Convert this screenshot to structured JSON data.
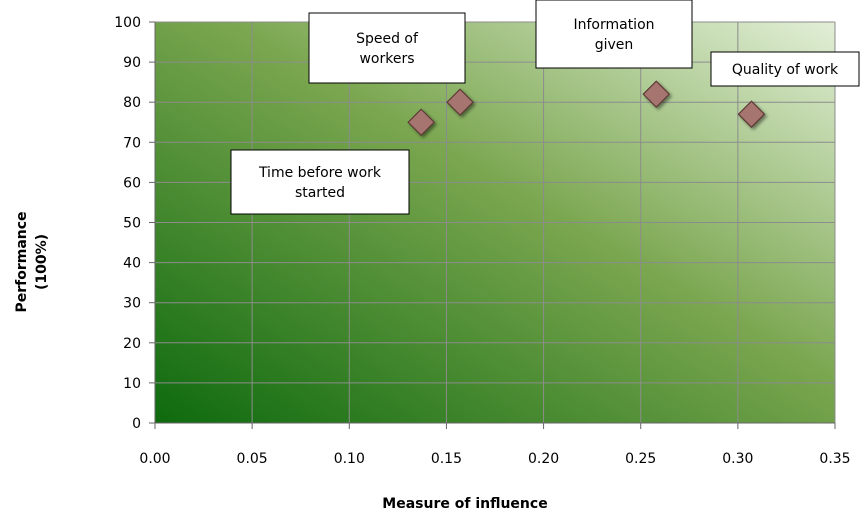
{
  "chart_data": {
    "type": "scatter",
    "title": "",
    "xlabel": "Measure of influence",
    "ylabel": [
      "Performance",
      "(100%)"
    ],
    "xlim": [
      0,
      0.35
    ],
    "ylim": [
      0,
      100
    ],
    "xticks": [
      "0.00",
      "0.05",
      "0.10",
      "0.15",
      "0.20",
      "0.25",
      "0.30",
      "0.35"
    ],
    "yticks": [
      "0",
      "10",
      "20",
      "30",
      "40",
      "50",
      "60",
      "70",
      "80",
      "90",
      "100"
    ],
    "grid": true,
    "legend": "none",
    "colors": {
      "plot_gradient_dark": "#0e6a0e",
      "plot_gradient_mid": "#7aa64f",
      "plot_gradient_light": "#e2efd7",
      "marker_fill": "#a7746f",
      "marker_stroke": "#5b3a36",
      "gridline": "#8c8c8c"
    },
    "points": [
      {
        "x": 0.137,
        "y": 75,
        "label": [
          "Time before work",
          "started"
        ]
      },
      {
        "x": 0.157,
        "y": 80,
        "label": [
          "Speed of",
          "workers"
        ]
      },
      {
        "x": 0.258,
        "y": 82,
        "label": [
          "Information",
          "given"
        ]
      },
      {
        "x": 0.307,
        "y": 77,
        "label": [
          "Quality of work"
        ]
      }
    ]
  }
}
